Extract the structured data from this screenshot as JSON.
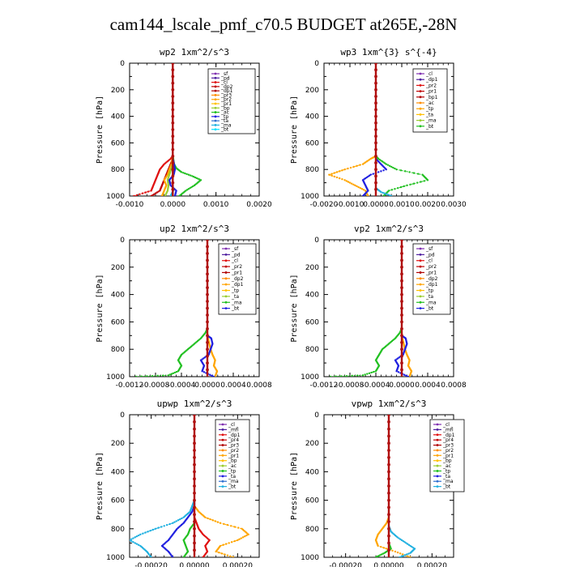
{
  "figure": {
    "title": "cam144_lscale_pmf_c70.5  BUDGET at265E,-28N"
  },
  "chart_data": [
    {
      "type": "line",
      "title": "wp2  1xm^2/s^3",
      "ylabel": "Pressure [hPa]",
      "ylim": [
        1000,
        0
      ],
      "xlim": [
        -0.001,
        0.002
      ],
      "xticks": [
        "-0.0010",
        "0.0000",
        "0.0010",
        "0.0020"
      ],
      "yticks": [
        "0",
        "200",
        "400",
        "600",
        "800",
        "1000"
      ],
      "legend": [
        "_sf",
        "_pd",
        "_cl",
        "_dp2",
        "_dp1",
        "_pr3",
        "_pr2",
        "_pr1",
        "_bp",
        "_ac",
        "_tp",
        "_ta",
        "_ma",
        "_bt"
      ],
      "series": [
        {
          "name": "_dp1",
          "color": "#e01010",
          "y": [
            1000,
            960,
            920,
            880,
            840,
            800,
            760,
            720,
            700
          ],
          "x": [
            -0.0009,
            -0.0005,
            -0.00045,
            -0.0004,
            -0.00035,
            -0.0003,
            -0.0002,
            -5e-05,
            0
          ]
        },
        {
          "name": "_dp2",
          "color": "#c00000",
          "y": [
            1000,
            960,
            920,
            880,
            840,
            800,
            760,
            720,
            700
          ],
          "x": [
            -0.0005,
            -0.0003,
            -0.00025,
            -0.0002,
            -0.00015,
            -0.0001,
            -5e-05,
            0,
            0
          ]
        },
        {
          "name": "_pr2",
          "color": "#ffa500",
          "y": [
            1000,
            960,
            920,
            880,
            840,
            800,
            760,
            700
          ],
          "x": [
            -0.00025,
            -0.0002,
            -0.00015,
            -0.0002,
            -0.00012,
            -8e-05,
            -3e-05,
            0
          ]
        },
        {
          "name": "_pr1",
          "color": "#9acd32",
          "y": [
            1000,
            960,
            920,
            880,
            840,
            800,
            760,
            720
          ],
          "x": [
            -0.00018,
            -0.00012,
            -0.0001,
            -0.00012,
            -8e-05,
            -4e-05,
            0,
            0
          ]
        },
        {
          "name": "_ac",
          "color": "#22c022",
          "y": [
            1000,
            960,
            920,
            880,
            850,
            820,
            790,
            760,
            720,
            700
          ],
          "x": [
            0.00015,
            0.0003,
            0.0005,
            0.00065,
            0.00045,
            0.0002,
            8e-05,
            3e-05,
            1e-05,
            0
          ]
        },
        {
          "name": "_tp",
          "color": "#2020e0",
          "y": [
            1000,
            960,
            920,
            880,
            840,
            800,
            760,
            720
          ],
          "x": [
            5e-05,
            8e-05,
            -5e-05,
            -8e-05,
            2e-05,
            5e-05,
            3e-05,
            0
          ]
        },
        {
          "name": "_ma",
          "color": "#20b0e0",
          "y": [
            1000,
            980,
            960,
            920
          ],
          "x": [
            -5e-05,
            -2e-05,
            1e-05,
            0
          ]
        },
        {
          "name": "_sf",
          "color": "#8030b0",
          "y": [
            0,
            1000
          ],
          "x": [
            0,
            0
          ]
        }
      ]
    },
    {
      "type": "line",
      "title": "wp3  1xm^{3} s^{-4}",
      "ylabel": "Pressure [hPa]",
      "ylim": [
        1000,
        0
      ],
      "xlim": [
        -0.002,
        0.003
      ],
      "xticks": [
        "-0.0020",
        "-0.0010",
        "0.0000",
        "0.0010",
        "0.0020",
        "0.0030"
      ],
      "yticks": [
        "0",
        "200",
        "400",
        "600",
        "800",
        "1000"
      ],
      "legend": [
        "_cl",
        "_dp1",
        "_pr2",
        "_pr1",
        "_bp1",
        "_ac",
        "_tp",
        "_ta",
        "_ma",
        "_bt"
      ],
      "series": [
        {
          "name": "_pr2",
          "color": "#ffa500",
          "y": [
            1000,
            960,
            920,
            880,
            840,
            800,
            760,
            720,
            700
          ],
          "x": [
            -0.0003,
            -0.0004,
            -0.0008,
            -0.0012,
            -0.0018,
            -0.0012,
            -0.0005,
            -0.0002,
            0
          ]
        },
        {
          "name": "_ac",
          "color": "#22c022",
          "y": [
            1000,
            960,
            920,
            880,
            840,
            800,
            760,
            720,
            700
          ],
          "x": [
            0.0003,
            0.0005,
            0.0012,
            0.002,
            0.0018,
            0.0008,
            0.0004,
            0.0001,
            0
          ]
        },
        {
          "name": "_tp",
          "color": "#2020e0",
          "y": [
            1000,
            960,
            920,
            880,
            840,
            800,
            760,
            720
          ],
          "x": [
            -0.0005,
            -0.0003,
            -0.0004,
            -0.0005,
            -0.0002,
            0.0004,
            0.0002,
            0
          ]
        },
        {
          "name": "_ma",
          "color": "#20b0e0",
          "y": [
            1000,
            970,
            940
          ],
          "x": [
            0.0006,
            0.0002,
            0
          ]
        },
        {
          "name": "_cl",
          "color": "#e01010",
          "y": [
            0,
            1000
          ],
          "x": [
            0,
            0
          ]
        }
      ]
    },
    {
      "type": "line",
      "title": "up2  1xm^2/s^3",
      "ylabel": "Pressure [hPa]",
      "ylim": [
        1000,
        0
      ],
      "xlim": [
        -0.0012,
        0.0008
      ],
      "xticks": [
        "-0.0012",
        "-0.0008",
        "-0.0004",
        "0.0000",
        "0.0004",
        "0.0008"
      ],
      "yticks": [
        "0",
        "200",
        "400",
        "600",
        "800",
        "1000"
      ],
      "legend": [
        "_sf",
        "_pd",
        "_cl",
        "_pr2",
        "_pr1",
        "_dp2",
        "_dp1",
        "_tp",
        "_ta",
        "_ma",
        "_bt"
      ],
      "series": [
        {
          "name": "_dp1",
          "color": "#22c022",
          "y": [
            1000,
            990,
            960,
            920,
            880,
            840,
            800,
            760,
            720,
            680,
            650
          ],
          "x": [
            -0.0011,
            -0.0006,
            -0.00045,
            -0.0004,
            -0.00045,
            -0.0004,
            -0.0003,
            -0.0002,
            -0.0001,
            -3e-05,
            0
          ]
        },
        {
          "name": "_pr2",
          "color": "#ffa500",
          "y": [
            1000,
            960,
            920,
            880,
            840,
            800,
            760,
            720,
            680
          ],
          "x": [
            0.00012,
            0.00015,
            0.0001,
            0.00012,
            8e-05,
            5e-05,
            3e-05,
            1e-05,
            0
          ]
        },
        {
          "name": "_tp",
          "color": "#2020e0",
          "y": [
            1000,
            960,
            920,
            880,
            840,
            800,
            760,
            720,
            700
          ],
          "x": [
            0.0001,
            -8e-05,
            -5e-05,
            -0.0001,
            2e-05,
            5e-05,
            8e-05,
            6e-05,
            0
          ]
        },
        {
          "name": "_cl",
          "color": "#c00000",
          "y": [
            0,
            1000
          ],
          "x": [
            0,
            0
          ]
        }
      ]
    },
    {
      "type": "line",
      "title": "vp2  1xm^2/s^3",
      "ylabel": "Pressure [hPa]",
      "ylim": [
        1000,
        0
      ],
      "xlim": [
        -0.0012,
        0.0008
      ],
      "xticks": [
        "-0.0012",
        "-0.0008",
        "-0.0004",
        "0.0000",
        "0.0004",
        "0.0008"
      ],
      "yticks": [
        "0",
        "200",
        "400",
        "600",
        "800",
        "1000"
      ],
      "legend": [
        "_sf",
        "_pd",
        "_cl",
        "_pr2",
        "_pr1",
        "_dp2",
        "_dp1",
        "_tp",
        "_ta",
        "_ma",
        "_bt"
      ],
      "series": [
        {
          "name": "_dp1",
          "color": "#22c022",
          "y": [
            1000,
            990,
            960,
            920,
            880,
            840,
            800,
            760,
            720,
            680,
            650
          ],
          "x": [
            -0.0011,
            -0.0006,
            -0.0004,
            -0.00035,
            -0.0004,
            -0.00035,
            -0.0003,
            -0.0002,
            -0.0001,
            -3e-05,
            0
          ]
        },
        {
          "name": "_pr2",
          "color": "#ffa500",
          "y": [
            1000,
            960,
            920,
            880,
            840,
            800,
            760,
            720,
            680
          ],
          "x": [
            0.00012,
            0.00015,
            0.0001,
            0.00012,
            8e-05,
            5e-05,
            3e-05,
            1e-05,
            0
          ]
        },
        {
          "name": "_tp",
          "color": "#2020e0",
          "y": [
            1000,
            960,
            920,
            880,
            840,
            800,
            760,
            720,
            700
          ],
          "x": [
            0.0001,
            -8e-05,
            -5e-05,
            -0.0001,
            2e-05,
            5e-05,
            8e-05,
            6e-05,
            0
          ]
        },
        {
          "name": "_cl",
          "color": "#c00000",
          "y": [
            0,
            1000
          ],
          "x": [
            0,
            0
          ]
        }
      ]
    },
    {
      "type": "line",
      "title": "upwp  1xm^2/s^3",
      "ylabel": "Pressure [hPa]",
      "ylim": [
        1000,
        0
      ],
      "xlim": [
        -0.0003,
        0.0003
      ],
      "xticks": [
        "-0.00020",
        "0.00000",
        "0.00020"
      ],
      "yticks": [
        "0",
        "200",
        "400",
        "600",
        "800",
        "1000"
      ],
      "legend": [
        "_cl",
        "_mfl",
        "_dp1",
        "_pr4",
        "_pr3",
        "_pr2",
        "_pr1",
        "_bp",
        "_ac",
        "_tp",
        "_ta",
        "_ma",
        "_bt"
      ],
      "series": [
        {
          "name": "_pr1",
          "color": "#ffa500",
          "y": [
            1000,
            960,
            920,
            880,
            840,
            800,
            760,
            720,
            680,
            640
          ],
          "x": [
            0.00018,
            0.0001,
            0.00012,
            0.0002,
            0.00025,
            0.00022,
            0.00012,
            5e-05,
            2e-05,
            0
          ]
        },
        {
          "name": "_ma",
          "color": "#20b0e0",
          "y": [
            1000,
            960,
            920,
            880,
            840,
            800,
            760,
            720,
            680,
            640,
            600
          ],
          "x": [
            -0.0002,
            -0.00022,
            -0.00025,
            -0.0003,
            -0.00025,
            -0.00018,
            -0.0001,
            -5e-05,
            -2e-05,
            -1e-05,
            0
          ]
        },
        {
          "name": "_tp",
          "color": "#2020e0",
          "y": [
            1000,
            960,
            920,
            880,
            840,
            800,
            760,
            720,
            680,
            640,
            600
          ],
          "x": [
            -0.0001,
            -0.00012,
            -0.00015,
            -0.00012,
            -0.0001,
            -8e-05,
            -5e-05,
            -3e-05,
            -1e-05,
            0,
            0
          ]
        },
        {
          "name": "_bp",
          "color": "#22c022",
          "y": [
            1000,
            960,
            920,
            880,
            840,
            800,
            760
          ],
          "x": [
            -5e-05,
            -3e-05,
            -4e-05,
            -5e-05,
            -3e-05,
            -2e-05,
            0
          ]
        },
        {
          "name": "_dp1",
          "color": "#e01010",
          "y": [
            1000,
            960,
            920,
            880,
            840,
            800,
            760,
            720,
            680
          ],
          "x": [
            4e-05,
            6e-05,
            5e-05,
            7e-05,
            4e-05,
            2e-05,
            1e-05,
            0,
            0
          ]
        },
        {
          "name": "_cl",
          "color": "#8030b0",
          "y": [
            0,
            1000
          ],
          "x": [
            0,
            0
          ]
        }
      ]
    },
    {
      "type": "line",
      "title": "vpwp  1xm^2/s^3",
      "ylabel": "Pressure [hPa]",
      "ylim": [
        1000,
        0
      ],
      "xlim": [
        -0.0003,
        0.0003
      ],
      "xticks": [
        "-0.00020",
        "0.00000",
        "0.00020"
      ],
      "yticks": [
        "0",
        "200",
        "400",
        "600",
        "800",
        "1000"
      ],
      "legend": [
        "_cl",
        "_mfl",
        "_dp1",
        "_pr4",
        "_pr3",
        "_pr2",
        "_pr1",
        "_bp",
        "_ac",
        "_tp",
        "_ta",
        "_ma",
        "_bt"
      ],
      "series": [
        {
          "name": "_pr1",
          "color": "#ffa500",
          "y": [
            1000,
            960,
            920,
            880,
            840,
            800,
            760,
            720,
            680
          ],
          "x": [
            0.0001,
            3e-05,
            -5e-05,
            -6e-05,
            -5e-05,
            -3e-05,
            -1e-05,
            0,
            0
          ]
        },
        {
          "name": "_ma",
          "color": "#20b0e0",
          "y": [
            1000,
            970,
            940,
            900,
            860,
            820,
            780
          ],
          "x": [
            5e-05,
            0.0001,
            0.00012,
            8e-05,
            4e-05,
            1e-05,
            0
          ]
        },
        {
          "name": "_bp",
          "color": "#22c022",
          "y": [
            1000,
            970,
            940,
            900
          ],
          "x": [
            -6e-05,
            -2e-05,
            1e-05,
            0
          ]
        },
        {
          "name": "_cl",
          "color": "#8030b0",
          "y": [
            0,
            1000
          ],
          "x": [
            0,
            0
          ]
        }
      ]
    }
  ],
  "colors": {
    "main_line": "#b01010",
    "legend_border": "#000000",
    "palette": [
      "#8030b0",
      "#5020a0",
      "#e01010",
      "#c00000",
      "#b00000",
      "#ff8c00",
      "#ffa500",
      "#ffc000",
      "#9acd32",
      "#22c022",
      "#2020e0",
      "#3070d0",
      "#20b0e0",
      "#00e0ff"
    ]
  }
}
